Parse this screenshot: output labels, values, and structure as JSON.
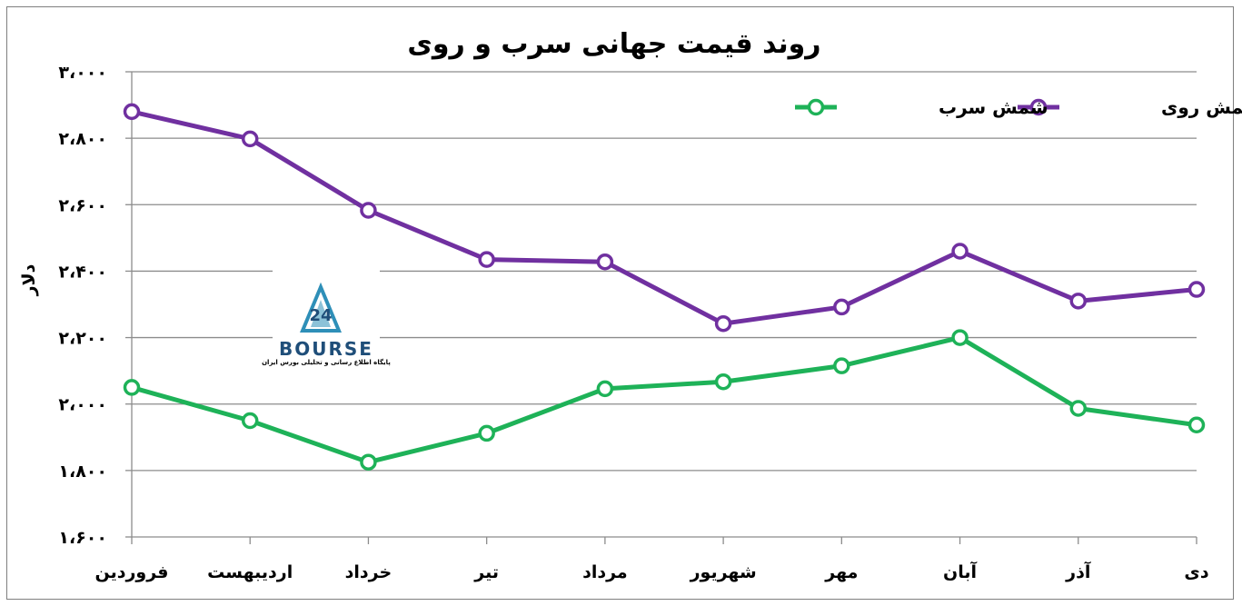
{
  "chart_data": {
    "type": "line",
    "title": "روند قیمت جهانی سرب و روی",
    "ylabel": "دلار",
    "xlabel": "",
    "ylim": [
      1600,
      3000
    ],
    "yticks": [
      1600,
      1800,
      2000,
      2200,
      2400,
      2600,
      2800,
      3000
    ],
    "ytick_labels": [
      "۱،۶۰۰",
      "۱،۸۰۰",
      "۲،۰۰۰",
      "۲،۲۰۰",
      "۲،۴۰۰",
      "۲،۶۰۰",
      "۲،۸۰۰",
      "۳،۰۰۰"
    ],
    "grid": true,
    "legend_position": "top-right",
    "categories": [
      "فروردین",
      "اردیبهست",
      "خرداد",
      "تیر",
      "مرداد",
      "شهریور",
      "مهر",
      "آبان",
      "آذر",
      "دی"
    ],
    "series": [
      {
        "name": "شمش روی",
        "color": "#7030a0",
        "values": [
          2880,
          2798,
          2583,
          2435,
          2428,
          2242,
          2292,
          2460,
          2310,
          2345
        ]
      },
      {
        "name": "شمش سرب",
        "color": "#1eb258",
        "values": [
          2050,
          1950,
          1825,
          1912,
          2046,
          2067,
          2115,
          2200,
          1987,
          1937
        ]
      }
    ]
  },
  "watermark": {
    "logo_text": "BOURSE",
    "logo_number": "24",
    "caption": "پایگاه اطلاع رسانی و تحلیلی بورس ایران"
  }
}
